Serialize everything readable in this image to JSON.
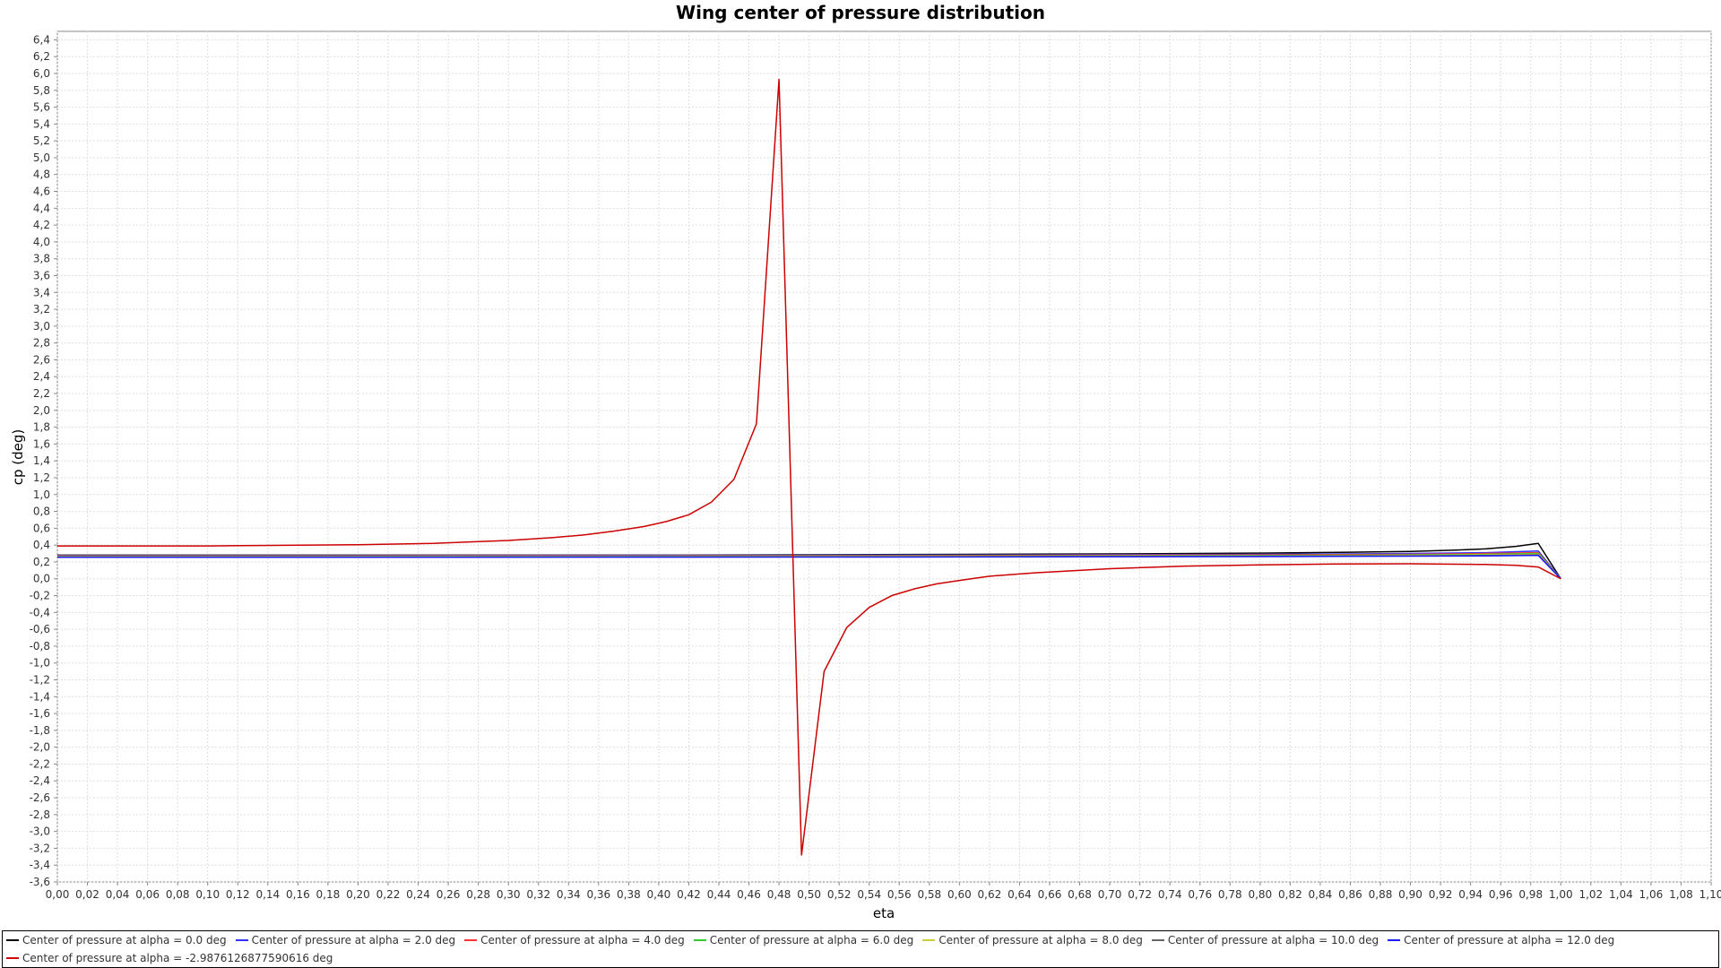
{
  "chart_data": {
    "type": "line",
    "title": "Wing center of pressure distribution",
    "xlabel": "eta",
    "ylabel": "cp (deg)",
    "xlim": [
      0.0,
      1.1
    ],
    "ylim": [
      -3.6,
      6.5
    ],
    "x_tick_step": 0.02,
    "y_tick_step": 0.2,
    "x_ticks": [
      "0,00",
      "0,02",
      "0,04",
      "0,06",
      "0,08",
      "0,10",
      "0,12",
      "0,14",
      "0,16",
      "0,18",
      "0,20",
      "0,22",
      "0,24",
      "0,26",
      "0,28",
      "0,30",
      "0,32",
      "0,34",
      "0,36",
      "0,38",
      "0,40",
      "0,42",
      "0,44",
      "0,46",
      "0,48",
      "0,50",
      "0,52",
      "0,54",
      "0,56",
      "0,58",
      "0,60",
      "0,62",
      "0,64",
      "0,66",
      "0,68",
      "0,70",
      "0,72",
      "0,74",
      "0,76",
      "0,78",
      "0,80",
      "0,82",
      "0,84",
      "0,86",
      "0,88",
      "0,90",
      "0,92",
      "0,94",
      "0,96",
      "0,98",
      "1,00",
      "1,02",
      "1,04",
      "1,06",
      "1,08",
      "1,10"
    ],
    "y_ticks": [
      "-3,6",
      "-3,4",
      "-3,2",
      "-3,0",
      "-2,8",
      "-2,6",
      "-2,4",
      "-2,2",
      "-2,0",
      "-1,8",
      "-1,6",
      "-1,4",
      "-1,2",
      "-1,0",
      "-0,8",
      "-0,6",
      "-0,4",
      "-0,2",
      "0,0",
      "0,2",
      "0,4",
      "0,6",
      "0,8",
      "1,0",
      "1,2",
      "1,4",
      "1,6",
      "1,8",
      "2,0",
      "2,2",
      "2,4",
      "2,6",
      "2,8",
      "3,0",
      "3,2",
      "3,4",
      "3,6",
      "3,8",
      "4,0",
      "4,2",
      "4,4",
      "4,6",
      "4,8",
      "5,0",
      "5,2",
      "5,4",
      "5,6",
      "5,8",
      "6,0",
      "6,2",
      "6,4"
    ],
    "grid": true,
    "legend_position": "bottom",
    "series": [
      {
        "name": "Center of pressure at alpha = 0.0 deg",
        "color": "#000000",
        "x": [
          0.0,
          0.1,
          0.2,
          0.3,
          0.4,
          0.5,
          0.6,
          0.7,
          0.8,
          0.86,
          0.9,
          0.93,
          0.95,
          0.96,
          0.97,
          0.985,
          1.0
        ],
        "y": [
          0.28,
          0.28,
          0.28,
          0.28,
          0.28,
          0.285,
          0.29,
          0.295,
          0.305,
          0.315,
          0.325,
          0.34,
          0.355,
          0.37,
          0.385,
          0.42,
          0.0
        ]
      },
      {
        "name": "Center of pressure at alpha = 2.0 deg",
        "color": "#3333ff",
        "x": [
          0.0,
          0.2,
          0.4,
          0.6,
          0.8,
          0.9,
          0.95,
          0.985,
          1.0
        ],
        "y": [
          0.275,
          0.275,
          0.278,
          0.282,
          0.29,
          0.3,
          0.31,
          0.33,
          0.0
        ]
      },
      {
        "name": "Center of pressure at alpha = 4.0 deg",
        "color": "#ff3333",
        "x": [
          0.0,
          0.2,
          0.4,
          0.6,
          0.8,
          0.9,
          0.95,
          0.985,
          1.0
        ],
        "y": [
          0.27,
          0.27,
          0.272,
          0.276,
          0.283,
          0.29,
          0.3,
          0.31,
          0.0
        ]
      },
      {
        "name": "Center of pressure at alpha = 6.0 deg",
        "color": "#33cc33",
        "x": [
          0.0,
          0.2,
          0.4,
          0.6,
          0.8,
          0.9,
          0.95,
          0.985,
          1.0
        ],
        "y": [
          0.265,
          0.265,
          0.267,
          0.27,
          0.277,
          0.283,
          0.29,
          0.3,
          0.0
        ]
      },
      {
        "name": "Center of pressure at alpha = 8.0 deg",
        "color": "#cccc33",
        "x": [
          0.0,
          0.2,
          0.4,
          0.6,
          0.8,
          0.9,
          0.95,
          0.985,
          1.0
        ],
        "y": [
          0.262,
          0.262,
          0.263,
          0.266,
          0.272,
          0.277,
          0.283,
          0.29,
          0.0
        ]
      },
      {
        "name": "Center of pressure at alpha = 10.0 deg",
        "color": "#666666",
        "x": [
          0.0,
          0.2,
          0.4,
          0.6,
          0.8,
          0.9,
          0.95,
          0.985,
          1.0
        ],
        "y": [
          0.258,
          0.258,
          0.26,
          0.262,
          0.268,
          0.272,
          0.277,
          0.283,
          0.0
        ]
      },
      {
        "name": "Center of pressure at alpha = 12.0 deg",
        "color": "#1a1aff",
        "x": [
          0.0,
          0.2,
          0.4,
          0.6,
          0.8,
          0.9,
          0.95,
          0.985,
          1.0
        ],
        "y": [
          0.255,
          0.255,
          0.257,
          0.259,
          0.264,
          0.268,
          0.272,
          0.278,
          0.0
        ]
      },
      {
        "name": "Center of pressure at alpha = -2.9876126877590616 deg",
        "color": "#cc0000",
        "x": [
          0.0,
          0.1,
          0.2,
          0.25,
          0.3,
          0.33,
          0.35,
          0.37,
          0.39,
          0.405,
          0.42,
          0.435,
          0.45,
          0.465,
          0.48,
          0.495,
          0.51,
          0.525,
          0.54,
          0.555,
          0.57,
          0.585,
          0.6,
          0.62,
          0.65,
          0.7,
          0.75,
          0.8,
          0.85,
          0.9,
          0.95,
          0.97,
          0.985,
          1.0
        ],
        "y": [
          0.39,
          0.39,
          0.405,
          0.42,
          0.455,
          0.49,
          0.52,
          0.565,
          0.62,
          0.68,
          0.76,
          0.91,
          1.18,
          1.84,
          5.93,
          -3.28,
          -1.1,
          -0.58,
          -0.34,
          -0.2,
          -0.12,
          -0.06,
          -0.02,
          0.03,
          0.07,
          0.12,
          0.15,
          0.165,
          0.175,
          0.178,
          0.17,
          0.16,
          0.14,
          0.0
        ]
      }
    ]
  }
}
